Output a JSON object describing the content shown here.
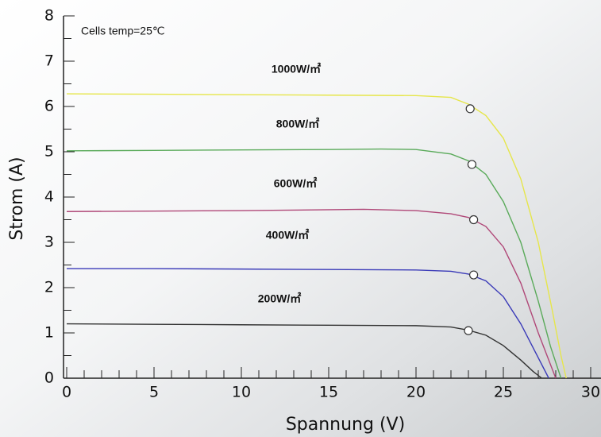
{
  "chart_data": {
    "type": "line",
    "annotation": "Cells temp=25℃",
    "xlabel": "Spannung (V)",
    "ylabel": "Strom (A)",
    "xlim": [
      0,
      30.5
    ],
    "ylim": [
      0,
      8
    ],
    "xticks": [
      0,
      5,
      10,
      15,
      20,
      25,
      30
    ],
    "yticks": [
      0,
      1,
      2,
      3,
      4,
      5,
      6,
      7,
      8
    ],
    "series": [
      {
        "name": "1000W/㎡",
        "color": "#e6e64a",
        "x": [
          0,
          5,
          10,
          15,
          20,
          22,
          23,
          24,
          25,
          26,
          27,
          27.8,
          28.3,
          28.6
        ],
        "values": [
          6.28,
          6.27,
          6.26,
          6.25,
          6.24,
          6.2,
          6.05,
          5.8,
          5.3,
          4.4,
          3.0,
          1.5,
          0.5,
          0
        ],
        "mpp": [
          23.1,
          5.95
        ]
      },
      {
        "name": "800W/㎡",
        "color": "#5aaa5a",
        "x": [
          0,
          5,
          10,
          15,
          18,
          20,
          22,
          23,
          24,
          25,
          26,
          27,
          27.7,
          28.3
        ],
        "values": [
          5.02,
          5.03,
          5.04,
          5.05,
          5.06,
          5.05,
          4.95,
          4.8,
          4.5,
          3.9,
          3.0,
          1.7,
          0.7,
          0
        ],
        "mpp": [
          23.2,
          4.72
        ]
      },
      {
        "name": "600W/㎡",
        "color": "#b04878",
        "x": [
          0,
          5,
          10,
          15,
          17,
          20,
          22,
          23,
          24,
          25,
          26,
          27,
          28
        ],
        "values": [
          3.68,
          3.69,
          3.7,
          3.72,
          3.73,
          3.7,
          3.63,
          3.55,
          3.35,
          2.9,
          2.1,
          1.0,
          0
        ],
        "mpp": [
          23.3,
          3.5
        ]
      },
      {
        "name": "400W/㎡",
        "color": "#3a3ab8",
        "x": [
          0,
          5,
          10,
          15,
          20,
          22,
          23,
          24,
          25,
          26,
          27,
          27.6
        ],
        "values": [
          2.42,
          2.42,
          2.41,
          2.4,
          2.39,
          2.36,
          2.3,
          2.15,
          1.8,
          1.2,
          0.45,
          0
        ],
        "mpp": [
          23.3,
          2.28
        ]
      },
      {
        "name": "200W/㎡",
        "color": "#333333",
        "x": [
          0,
          5,
          10,
          15,
          20,
          22,
          23,
          24,
          25,
          26,
          26.7,
          27.2
        ],
        "values": [
          1.2,
          1.19,
          1.18,
          1.17,
          1.16,
          1.13,
          1.06,
          0.95,
          0.72,
          0.4,
          0.15,
          0
        ],
        "mpp": [
          23.0,
          1.05
        ]
      }
    ]
  }
}
